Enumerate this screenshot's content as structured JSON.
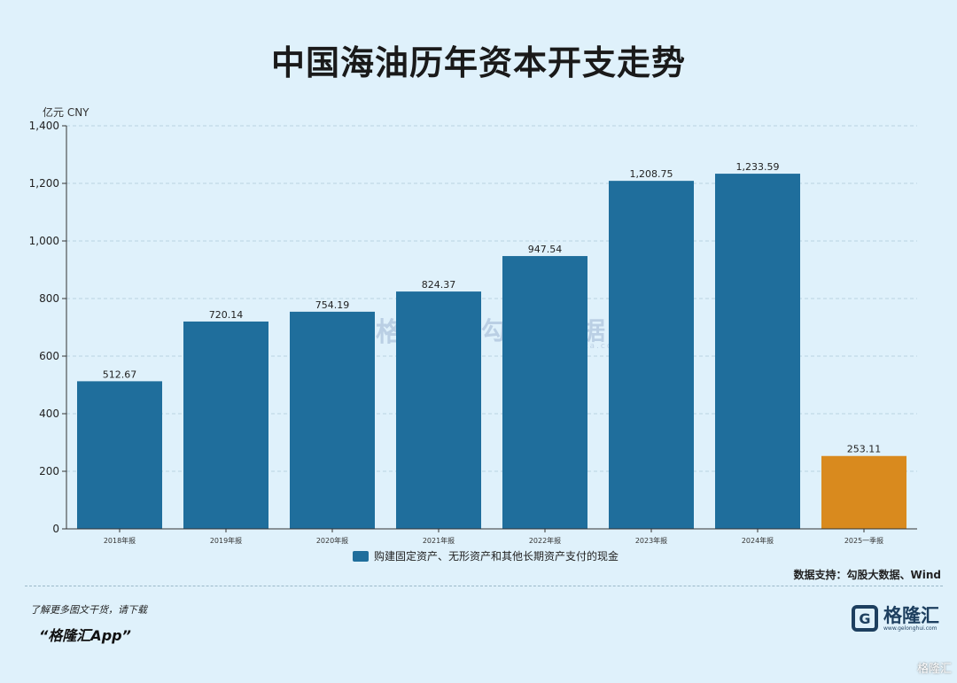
{
  "title": "中国海油历年资本开支走势",
  "unit_label": "亿元  CNY",
  "legend_label": "购建固定资产、无形资产和其他长期资产支付的现金",
  "source": "数据支持：勾股大数据、Wind",
  "promo_line1": "了解更多图文干货，请下载",
  "promo_line2": "“格隆汇App”",
  "logo_name": "格隆汇",
  "logo_url": "www.gelonghui.com",
  "watermark_left": "格隆汇",
  "watermark_right": "勾股大数据",
  "watermark_url": "www.gogudata.com",
  "corner_mark": "格隆汇",
  "colors": {
    "bar": "#1f6e9c",
    "highlight": "#d98a1e",
    "background": "#dff1fb"
  },
  "chart_data": {
    "type": "bar",
    "categories": [
      "2018年报",
      "2019年报",
      "2020年报",
      "2021年报",
      "2022年报",
      "2023年报",
      "2024年报",
      "2025一季报"
    ],
    "values": [
      512.67,
      720.14,
      754.19,
      824.37,
      947.54,
      1208.75,
      1233.59,
      253.11
    ],
    "value_labels": [
      "512.67",
      "720.14",
      "754.19",
      "824.37",
      "947.54",
      "1,208.75",
      "1,233.59",
      "253.11"
    ],
    "highlight_index": 7,
    "ylim": [
      0,
      1400
    ],
    "yticks": [
      0,
      200,
      400,
      600,
      800,
      1000,
      1200,
      1400
    ],
    "ytick_labels": [
      "0",
      "200",
      "400",
      "600",
      "800",
      "1,000",
      "1,200",
      "1,400"
    ],
    "grid": true
  }
}
